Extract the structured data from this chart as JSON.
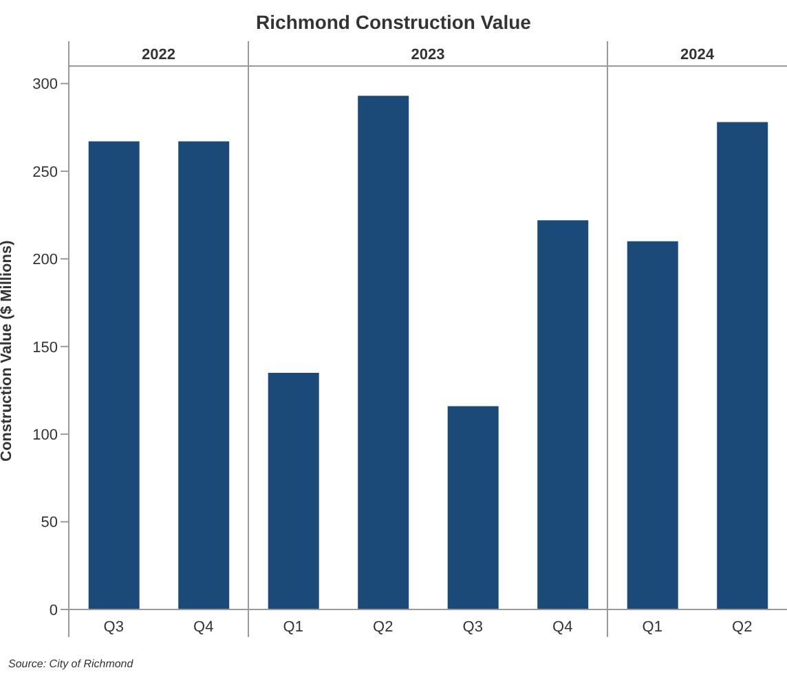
{
  "chart_data": {
    "type": "bar",
    "title": "Richmond Construction Value",
    "ylabel": "Construction Value ($ Millions)",
    "categories": [
      "Q3",
      "Q4",
      "Q1",
      "Q2",
      "Q3",
      "Q4",
      "Q1",
      "Q2"
    ],
    "values": [
      267,
      267,
      135,
      293,
      116,
      222,
      210,
      278
    ],
    "color": "#1b4a78",
    "ylim": [
      0,
      310
    ],
    "yticks": [
      0,
      50,
      100,
      150,
      200,
      250,
      300
    ],
    "annotations": [
      "2022",
      "2023",
      "2024",
      "Source: City of Richmond"
    ]
  }
}
